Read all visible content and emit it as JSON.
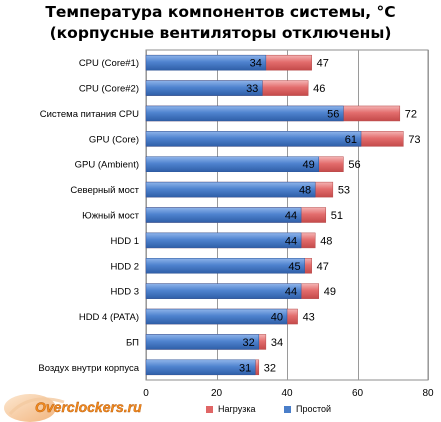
{
  "chart_data": {
    "type": "bar",
    "orientation": "horizontal",
    "stacked": "overlay",
    "title_lines": [
      "Температура компонентов системы, °С",
      "(корпусные вентиляторы отключены)"
    ],
    "categories": [
      "CPU (Core#1)",
      "CPU (Core#2)",
      "Система питания CPU",
      "GPU (Core)",
      "GPU (Ambient)",
      "Северный мост",
      "Южный мост",
      "HDD 1",
      "HDD 2",
      "HDD 3",
      "HDD 4 (PATA)",
      "БП",
      "Воздух внутри корпуса"
    ],
    "series": [
      {
        "name": "Нагрузка",
        "color": "#e06666",
        "values": [
          47,
          46,
          72,
          73,
          56,
          53,
          51,
          48,
          47,
          49,
          43,
          34,
          32
        ]
      },
      {
        "name": "Простой",
        "color": "#4a7ec9",
        "values": [
          34,
          33,
          56,
          61,
          49,
          48,
          44,
          44,
          45,
          44,
          40,
          32,
          31
        ]
      }
    ],
    "x_ticks": [
      0,
      20,
      40,
      60,
      80
    ],
    "xlim": [
      0,
      80
    ],
    "grid": true,
    "legend_position": "bottom"
  },
  "logo": {
    "text": "Overclockers.ru"
  }
}
